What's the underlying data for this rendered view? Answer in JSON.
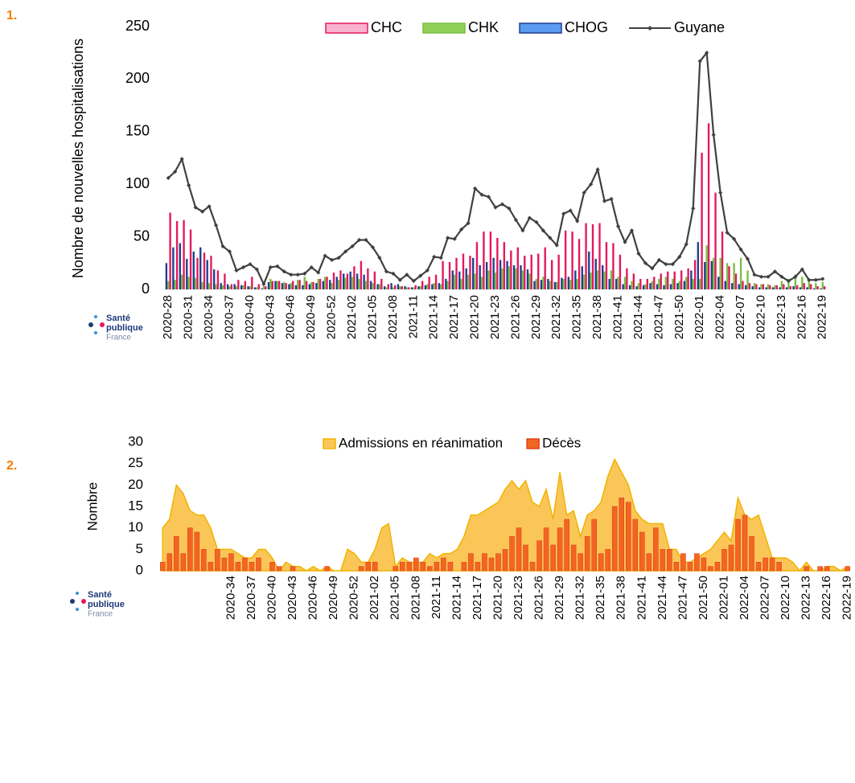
{
  "section_numbers": [
    "1.",
    "2."
  ],
  "logo": {
    "line1": "Santé",
    "line2": "publique",
    "line3": "France"
  },
  "chart_data": [
    {
      "type": "combo",
      "y_label": "Nombre de nouvelles hospitalisations",
      "legend": "top",
      "grid": false,
      "ylim": [
        0,
        250
      ],
      "yticks": [
        0,
        50,
        100,
        150,
        200,
        250
      ],
      "categories": [
        "2020-28",
        null,
        null,
        "2020-31",
        null,
        null,
        "2020-34",
        null,
        null,
        "2020-37",
        null,
        null,
        "2020-40",
        null,
        null,
        "2020-43",
        null,
        null,
        "2020-46",
        null,
        null,
        "2020-49",
        null,
        null,
        "2020-52",
        null,
        null,
        "2021-02",
        null,
        null,
        "2021-05",
        null,
        null,
        "2021-08",
        null,
        null,
        "2021-11",
        null,
        null,
        "2021-14",
        null,
        null,
        "2021-17",
        null,
        null,
        "2021-20",
        null,
        null,
        "2021-23",
        null,
        null,
        "2021-26",
        null,
        null,
        "2021-29",
        null,
        null,
        "2021-32",
        null,
        null,
        "2021-35",
        null,
        null,
        "2021-38",
        null,
        null,
        "2021-41",
        null,
        null,
        "2021-44",
        null,
        null,
        "2021-47",
        null,
        null,
        "2021-50",
        null,
        null,
        "2022-01",
        null,
        null,
        "2022-04",
        null,
        null,
        "2022-07",
        null,
        null,
        "2022-10",
        null,
        null,
        "2022-13",
        null,
        null,
        "2022-16",
        null,
        null,
        "2022-19"
      ],
      "series": [
        {
          "name": "CHC",
          "type": "bar",
          "color": "#e5185d",
          "legend_fill": "#f9b3cf",
          "values": [
            73,
            65,
            66,
            57,
            30,
            35,
            32,
            18,
            15,
            5,
            9,
            8,
            12,
            5,
            3,
            8,
            8,
            6,
            8,
            9,
            8,
            7,
            10,
            12,
            16,
            18,
            15,
            22,
            27,
            20,
            17,
            10,
            5,
            4,
            3,
            2,
            4,
            8,
            12,
            14,
            27,
            26,
            30,
            34,
            32,
            45,
            55,
            55,
            49,
            45,
            37,
            40,
            32,
            33,
            34,
            40,
            28,
            33,
            56,
            55,
            48,
            63,
            62,
            63,
            45,
            44,
            33,
            20,
            15,
            10,
            10,
            12,
            15,
            17,
            17,
            18,
            20,
            28,
            130,
            158,
            92,
            55,
            22,
            15,
            8,
            6,
            5,
            5,
            4,
            4,
            5,
            3,
            4,
            6,
            5,
            3,
            3
          ]
        },
        {
          "name": "CHK",
          "type": "bar",
          "color": "#78c043",
          "legend_fill": "#8fcf5a",
          "values": [
            8,
            9,
            14,
            12,
            11,
            7,
            6,
            5,
            4,
            3,
            3,
            4,
            3,
            2,
            3,
            10,
            8,
            7,
            6,
            9,
            12,
            7,
            10,
            12,
            6,
            9,
            11,
            12,
            10,
            8,
            6,
            5,
            2,
            2,
            3,
            2,
            2,
            3,
            5,
            6,
            5,
            8,
            14,
            10,
            14,
            15,
            12,
            18,
            16,
            20,
            22,
            20,
            18,
            15,
            10,
            12,
            8,
            7,
            10,
            9,
            10,
            14,
            16,
            18,
            17,
            18,
            12,
            12,
            8,
            6,
            5,
            8,
            10,
            12,
            10,
            8,
            12,
            10,
            10,
            42,
            30,
            30,
            25,
            25,
            30,
            18,
            6,
            5,
            5,
            4,
            8,
            10,
            14,
            12,
            8,
            6,
            7
          ]
        },
        {
          "name": "CHOG",
          "type": "bar",
          "color": "#1f3f8f",
          "legend_fill": "#5b9bf0",
          "values": [
            25,
            40,
            44,
            29,
            36,
            40,
            28,
            19,
            6,
            5,
            5,
            4,
            3,
            2,
            1,
            7,
            8,
            6,
            5,
            4,
            4,
            5,
            6,
            8,
            9,
            12,
            15,
            17,
            15,
            14,
            8,
            5,
            3,
            6,
            5,
            3,
            2,
            3,
            4,
            5,
            6,
            10,
            18,
            17,
            20,
            30,
            23,
            26,
            30,
            28,
            27,
            23,
            23,
            19,
            8,
            9,
            10,
            7,
            11,
            12,
            18,
            22,
            36,
            29,
            23,
            10,
            10,
            5,
            4,
            3,
            4,
            6,
            5,
            4,
            5,
            6,
            8,
            18,
            45,
            26,
            27,
            12,
            8,
            6,
            5,
            4,
            3,
            2,
            2,
            2,
            2,
            2,
            3,
            2,
            2,
            1,
            1
          ]
        },
        {
          "name": "Guyane",
          "type": "line",
          "color": "#404040",
          "values": [
            106,
            112,
            124,
            99,
            78,
            74,
            79,
            61,
            41,
            36,
            18,
            21,
            24,
            19,
            5,
            21,
            22,
            17,
            14,
            14,
            15,
            21,
            16,
            32,
            28,
            30,
            36,
            41,
            47,
            47,
            40,
            30,
            17,
            15,
            9,
            14,
            8,
            13,
            18,
            31,
            30,
            49,
            48,
            57,
            63,
            96,
            90,
            88,
            78,
            81,
            77,
            66,
            56,
            68,
            64,
            56,
            49,
            42,
            72,
            75,
            65,
            92,
            100,
            114,
            84,
            86,
            60,
            45,
            56,
            34,
            25,
            20,
            28,
            24,
            24,
            31,
            43,
            77,
            217,
            225,
            147,
            92,
            54,
            48,
            38,
            29,
            14,
            12,
            12,
            17,
            12,
            8,
            12,
            19,
            9,
            9,
            10
          ]
        }
      ]
    },
    {
      "type": "combo",
      "y_label": "Nombre",
      "legend": "top",
      "grid": false,
      "ylim": [
        0,
        30
      ],
      "yticks": [
        0,
        5,
        10,
        15,
        20,
        25,
        30
      ],
      "categories": [
        null,
        null,
        null,
        null,
        null,
        null,
        null,
        null,
        null,
        null,
        "2020-34",
        null,
        null,
        "2020-37",
        null,
        null,
        "2020-40",
        null,
        null,
        "2020-43",
        null,
        null,
        "2020-46",
        null,
        null,
        "2020-49",
        null,
        null,
        "2020-52",
        null,
        null,
        "2021-02",
        null,
        null,
        "2021-05",
        null,
        null,
        "2021-08",
        null,
        null,
        "2021-11",
        null,
        null,
        "2021-14",
        null,
        null,
        "2021-17",
        null,
        null,
        "2021-20",
        null,
        null,
        "2021-23",
        null,
        null,
        "2021-26",
        null,
        null,
        "2021-29",
        null,
        null,
        "2021-32",
        null,
        null,
        "2021-35",
        null,
        null,
        "2021-38",
        null,
        null,
        "2021-41",
        null,
        null,
        "2021-44",
        null,
        null,
        "2021-47",
        null,
        null,
        "2021-50",
        null,
        null,
        "2022-01",
        null,
        null,
        "2022-04",
        null,
        null,
        "2022-07",
        null,
        null,
        "2022-10",
        null,
        null,
        "2022-13",
        null,
        null,
        "2022-16",
        null,
        null,
        "2022-19"
      ],
      "series": [
        {
          "name": "Admissions en réanimation",
          "type": "area",
          "color": "#fbc658",
          "stroke": "#f0b400",
          "values": [
            10,
            12,
            20,
            18,
            14,
            13,
            13,
            10,
            5,
            5,
            5,
            4,
            3,
            3,
            5,
            5,
            3,
            0,
            2,
            1,
            1,
            0,
            1,
            0,
            1,
            0,
            0,
            5,
            4,
            2,
            2,
            5,
            10,
            11,
            1,
            3,
            2,
            2,
            2,
            4,
            3,
            4,
            4,
            5,
            8,
            13,
            13,
            14,
            15,
            16,
            19,
            21,
            19,
            21,
            16,
            15,
            19,
            12,
            23,
            13,
            14,
            8,
            13,
            14,
            16,
            22,
            26,
            23,
            20,
            14,
            12,
            11,
            11,
            11,
            5,
            5,
            2,
            2,
            3,
            4,
            5,
            7,
            9,
            7,
            17,
            13,
            12,
            13,
            8,
            3,
            3,
            3,
            2,
            0,
            2,
            0,
            0,
            1,
            1,
            0,
            1
          ]
        },
        {
          "name": "Décès",
          "type": "bar",
          "color": "#f26522",
          "stroke": "#e0431a",
          "values": [
            2,
            4,
            8,
            4,
            10,
            9,
            5,
            2,
            5,
            3,
            4,
            2,
            3,
            2,
            3,
            0,
            2,
            1,
            0,
            1,
            0,
            0,
            0,
            0,
            1,
            0,
            0,
            0,
            0,
            1,
            2,
            2,
            0,
            0,
            1,
            2,
            2,
            3,
            2,
            1,
            2,
            3,
            2,
            0,
            2,
            4,
            2,
            4,
            3,
            4,
            5,
            8,
            10,
            6,
            2,
            7,
            10,
            6,
            10,
            12,
            6,
            4,
            8,
            12,
            4,
            5,
            15,
            17,
            16,
            12,
            9,
            4,
            10,
            5,
            5,
            2,
            4,
            2,
            4,
            3,
            1,
            2,
            5,
            6,
            12,
            13,
            8,
            2,
            3,
            3,
            2,
            0,
            0,
            0,
            1,
            0,
            1,
            1,
            0,
            0,
            1
          ]
        }
      ]
    }
  ]
}
